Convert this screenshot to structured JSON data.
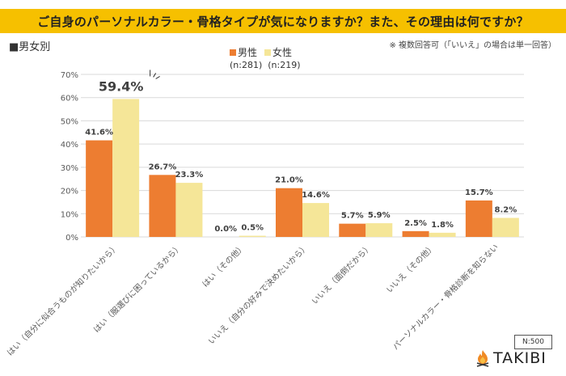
{
  "header": {
    "title": "ご自身のパーソナルカラー・骨格タイプが気になりますか？また、その理由は何ですか？",
    "section_label": "■男女別",
    "note": "※ 複数回答可（「いいえ」の場合は単一回答）"
  },
  "legend": {
    "items": [
      {
        "label": "男性",
        "n": "(n:281)",
        "color": "#ed7d31"
      },
      {
        "label": "女性",
        "n": "(n:219)",
        "color": "#f5e698"
      }
    ]
  },
  "footer": {
    "sample_size": "N:500",
    "logo_text": "TAKIBI",
    "logo_icon": "campfire-icon"
  },
  "chart_data": {
    "type": "bar",
    "title": "ご自身のパーソナルカラー・骨格タイプが気になりますか？また、その理由は何ですか？",
    "xlabel": "",
    "ylabel": "",
    "ylim": [
      0,
      70
    ],
    "yticks": [
      0,
      10,
      20,
      30,
      40,
      50,
      60,
      70
    ],
    "ytick_labels": [
      "0%",
      "10%",
      "20%",
      "30%",
      "40%",
      "50%",
      "60%",
      "70%"
    ],
    "grid": true,
    "legend_position": "top-center",
    "categories": [
      "はい（自分に似合うものが知りたいから）",
      "はい（服選びに困っているから）",
      "はい（その他）",
      "いいえ（自分の好みで決めたいから）",
      "いいえ（面倒だから）",
      "いいえ（その他）",
      "パーソナルカラー・骨格診断を知らない"
    ],
    "series": [
      {
        "name": "男性",
        "values": [
          41.6,
          26.7,
          0.0,
          21.0,
          5.7,
          2.5,
          15.7
        ],
        "labels": [
          "41.6%",
          "26.7%",
          "0.0%",
          "21.0%",
          "5.7%",
          "2.5%",
          "15.7%"
        ],
        "color": "#ed7d31"
      },
      {
        "name": "女性",
        "values": [
          59.4,
          23.3,
          0.5,
          14.6,
          5.9,
          1.8,
          8.2
        ],
        "labels": [
          "59.4%",
          "23.3%",
          "0.5%",
          "14.6%",
          "5.9%",
          "1.8%",
          "8.2%"
        ],
        "color": "#f5e698"
      }
    ],
    "highlight": {
      "series": 1,
      "category": 0
    }
  }
}
